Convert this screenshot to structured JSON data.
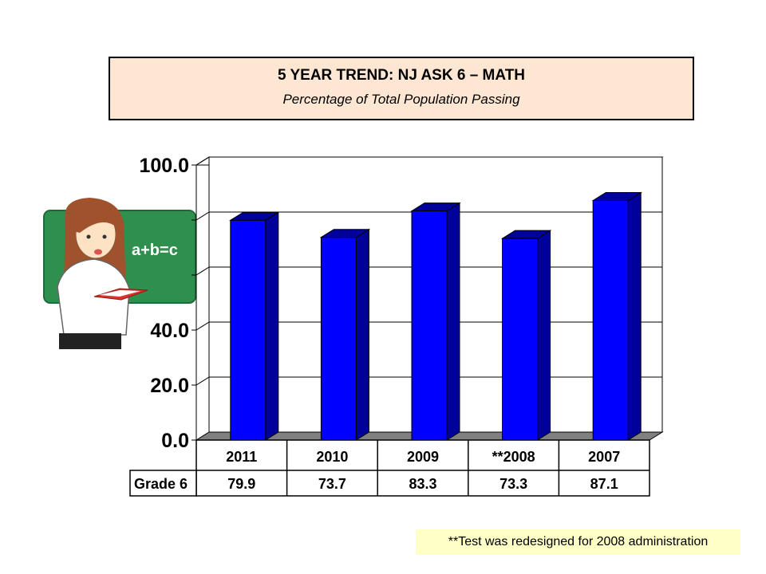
{
  "chart_data": {
    "type": "bar",
    "title": "5 YEAR TREND:  NJ ASK 6 – MATH",
    "subtitle": "Percentage of Total Population Passing",
    "categories": [
      "2011",
      "2010",
      "2009",
      "**2008",
      "2007"
    ],
    "series": [
      {
        "name": "Grade 6",
        "values": [
          79.9,
          73.7,
          83.3,
          73.3,
          87.1
        ]
      }
    ],
    "table_values": [
      "79.9",
      "73.7",
      "83.3",
      "73.3",
      "87.1"
    ],
    "ylim": [
      0,
      100
    ],
    "yticks": [
      "0.0",
      "20.0",
      "40.0",
      "",
      "",
      "100.0"
    ],
    "gridlines": true,
    "bar_color": "#0000ff",
    "bar_dark_color": "#00009a",
    "floor_color": "#808080"
  },
  "footnote": "**Test was redesigned for 2008 administration",
  "illustration": {
    "icon": "teacher-with-chalkboard-icon",
    "board_text": "a+b=c"
  }
}
